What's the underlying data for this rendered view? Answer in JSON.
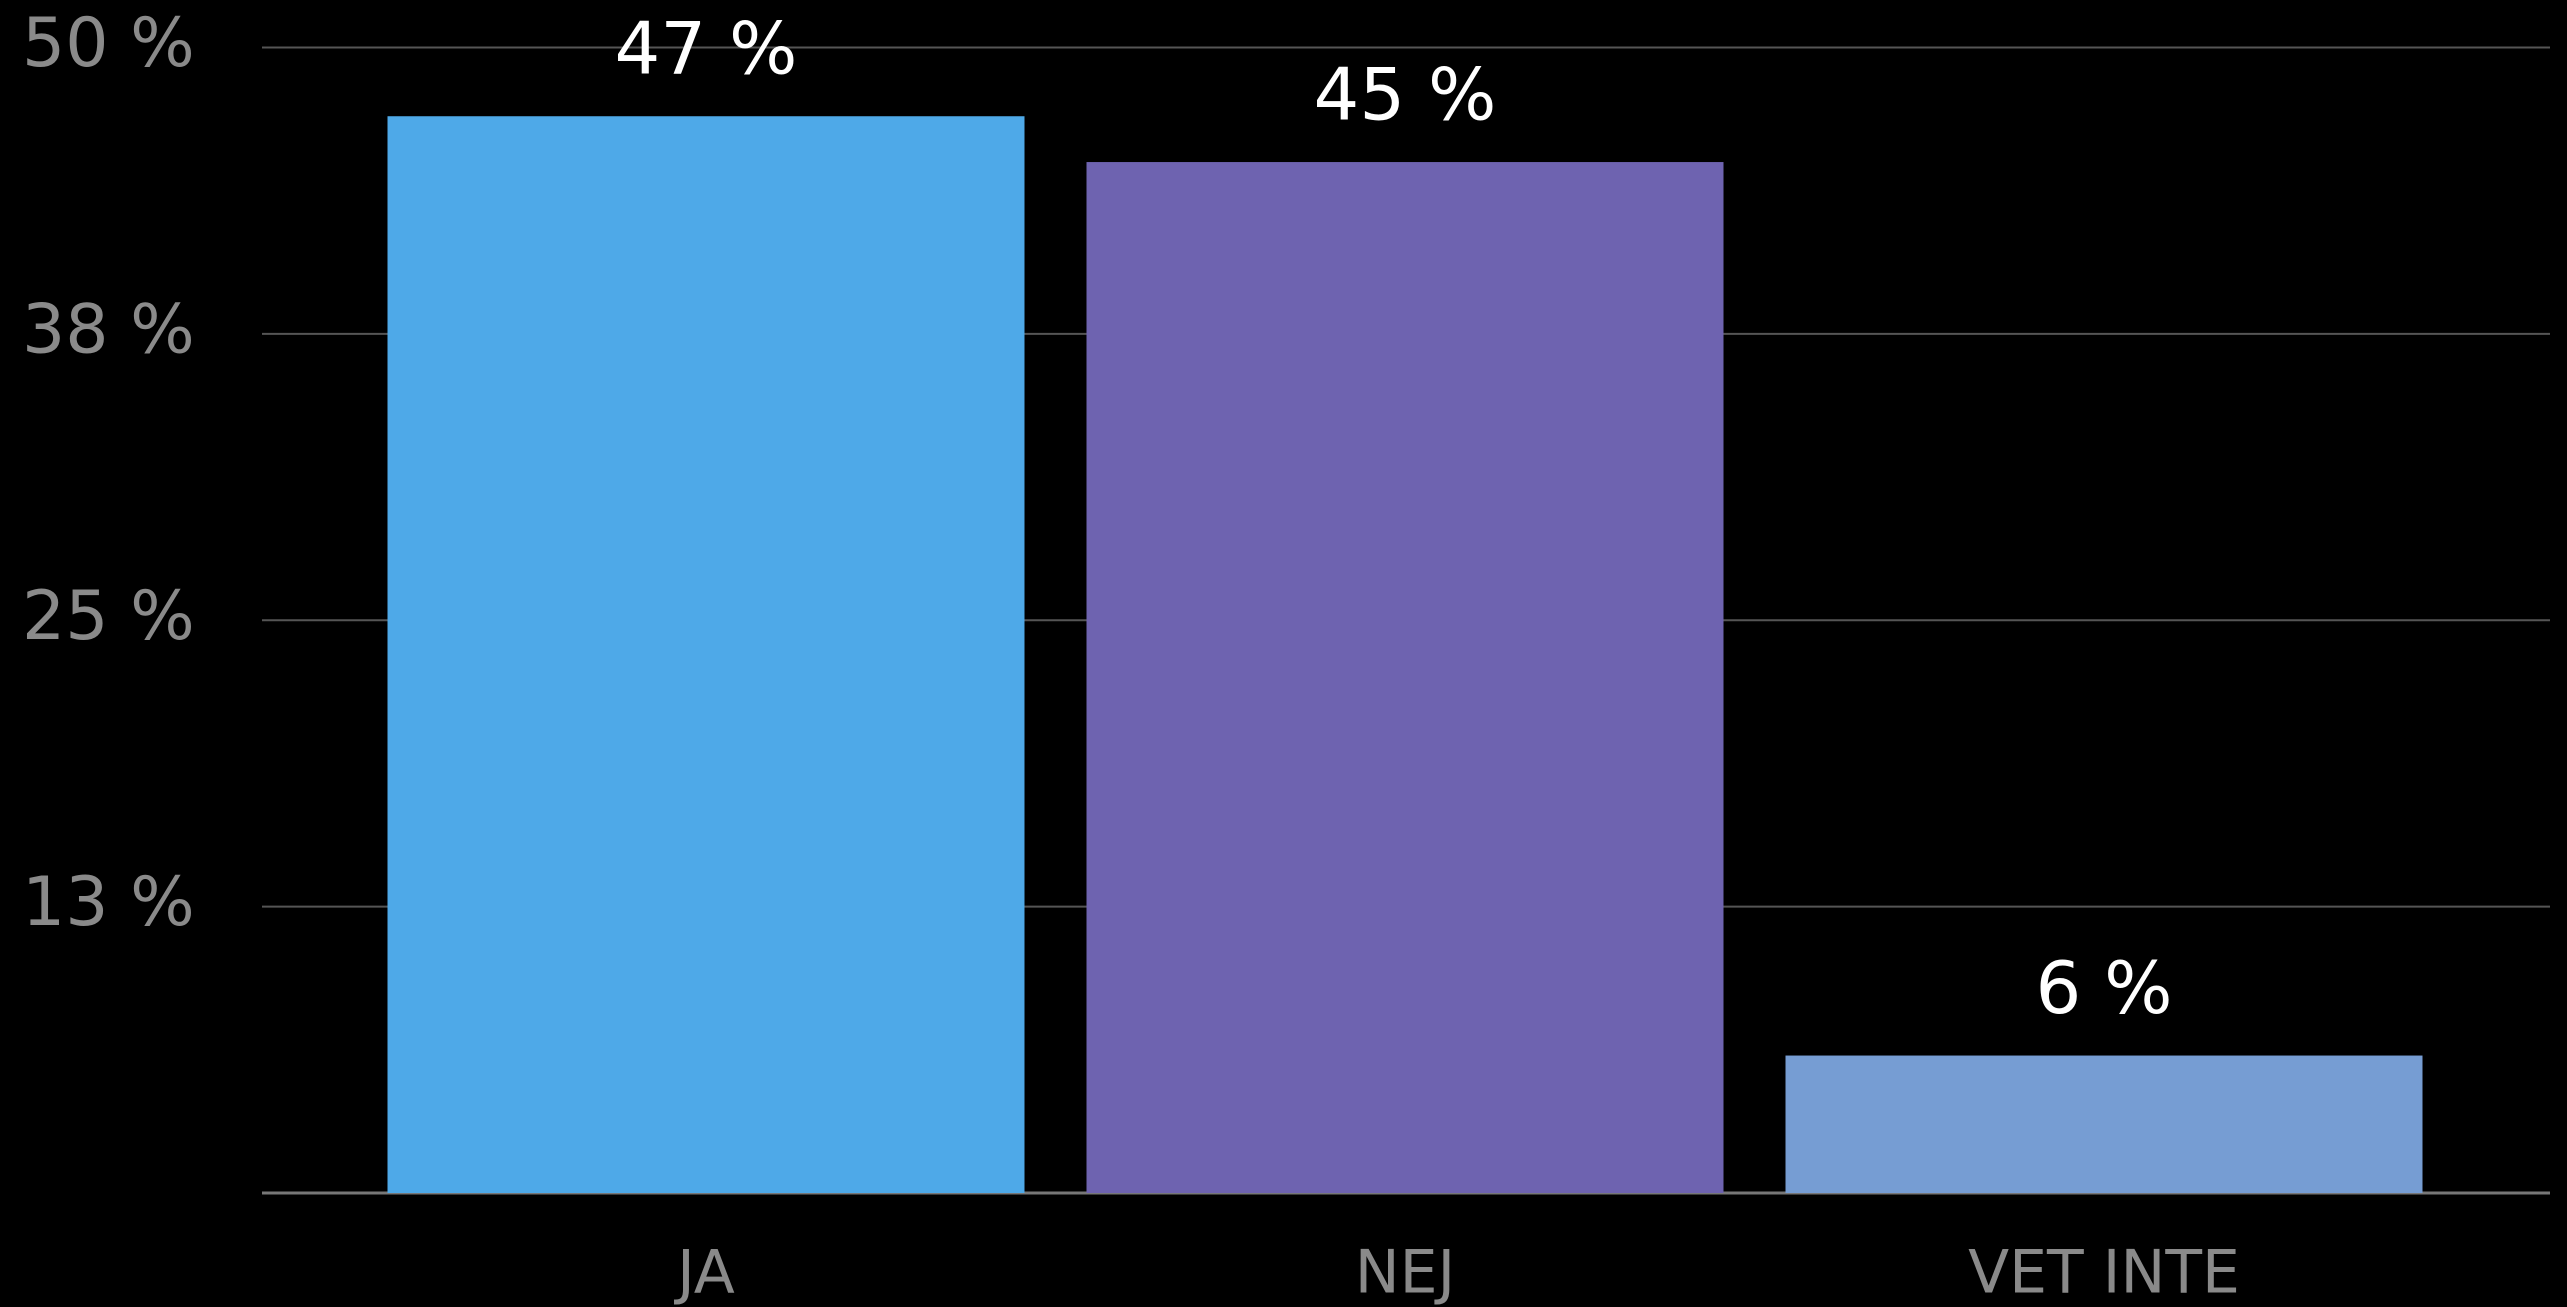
{
  "chart_data": {
    "type": "bar",
    "categories": [
      "JA",
      "NEJ",
      "VET INTE"
    ],
    "values": [
      47,
      45,
      6
    ],
    "value_labels": [
      "47 %",
      "45 %",
      "6 %"
    ],
    "colors": [
      "#4ea9e8",
      "#6e63b0",
      "#769dd3"
    ],
    "ylim": [
      0,
      50
    ],
    "yticks": [
      {
        "value": 12.5,
        "label": "13 %"
      },
      {
        "value": 25,
        "label": "25 %"
      },
      {
        "value": 37.5,
        "label": "38 %"
      },
      {
        "value": 50,
        "label": "50 %"
      }
    ],
    "grid": true
  }
}
